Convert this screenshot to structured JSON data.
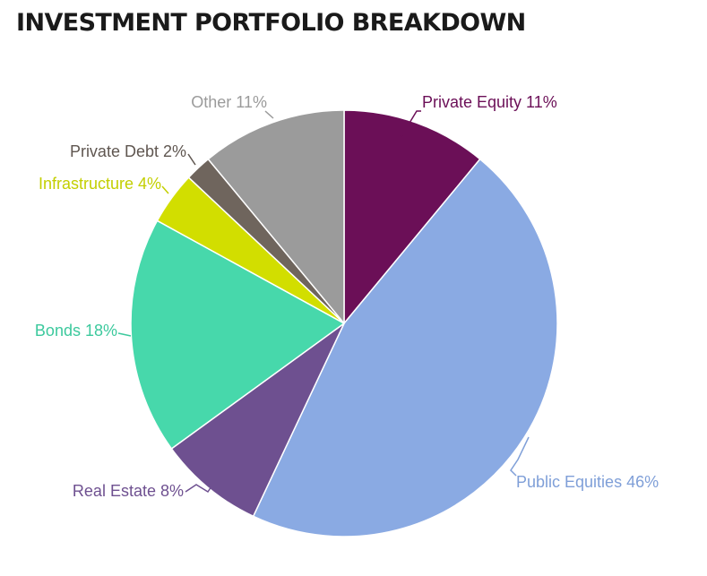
{
  "chart_data": {
    "type": "pie",
    "title": "INVESTMENT PORTFOLIO BREAKDOWN",
    "start_angle_deg": 0,
    "direction": "clockwise",
    "slices": [
      {
        "label": "Private Equity 11%",
        "name": "Private Equity",
        "value": 11,
        "color": "#6b0f57",
        "label_color": "#6b0f57"
      },
      {
        "label": "Public Equities 46%",
        "name": "Public Equities",
        "value": 46,
        "color": "#8aaae3",
        "label_color": "#7f9fd8"
      },
      {
        "label": "Real Estate 8%",
        "name": "Real Estate",
        "value": 8,
        "color": "#6e5090",
        "label_color": "#6e5090"
      },
      {
        "label": "Bonds 18%",
        "name": "Bonds",
        "value": 18,
        "color": "#47d8ab",
        "label_color": "#3cc99d"
      },
      {
        "label": "Infrastructure 4%",
        "name": "Infrastructure",
        "value": 4,
        "color": "#d2de00",
        "label_color": "#c3cf00"
      },
      {
        "label": "Private Debt 2%",
        "name": "Private Debt",
        "value": 2,
        "color": "#6f655d",
        "label_color": "#5f5650"
      },
      {
        "label": "Other 11%",
        "name": "Other",
        "value": 11,
        "color": "#9b9b9b",
        "label_color": "#9b9b9b"
      }
    ]
  }
}
